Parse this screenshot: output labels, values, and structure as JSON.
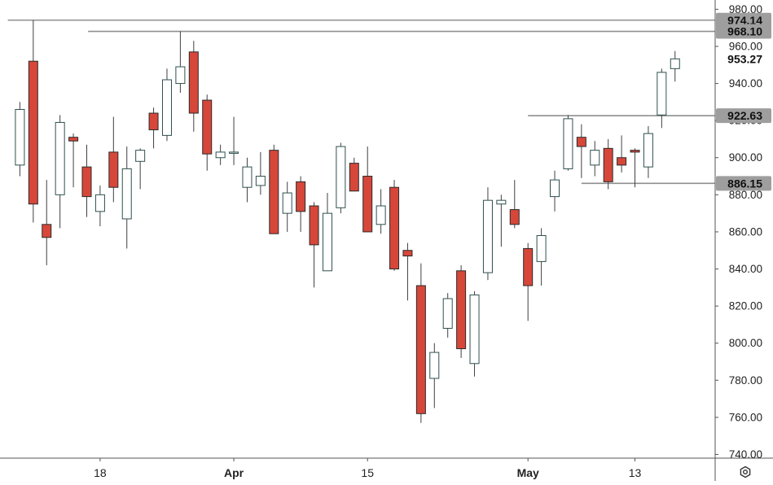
{
  "chart_data": {
    "type": "candlestick",
    "y_axis_ticks": [
      "740.00",
      "760.00",
      "780.00",
      "800.00",
      "820.00",
      "840.00",
      "860.00",
      "880.00",
      "900.00",
      "920.00",
      "940.00",
      "960.00",
      "980.00"
    ],
    "ylim": [
      738,
      985
    ],
    "x_axis_labels": [
      {
        "label": "18",
        "index": 6
      },
      {
        "label": "Apr",
        "index": 16
      },
      {
        "label": "15",
        "index": 26
      },
      {
        "label": "May",
        "index": 38
      },
      {
        "label": "13",
        "index": 46
      }
    ],
    "x_range_days": [
      -1,
      52
    ],
    "candles": [
      {
        "x": 0,
        "o": 896,
        "h": 930,
        "l": 890,
        "c": 926
      },
      {
        "x": 1,
        "o": 952,
        "h": 974.14,
        "l": 865,
        "c": 875
      },
      {
        "x": 2,
        "o": 864,
        "h": 888,
        "l": 842,
        "c": 857
      },
      {
        "x": 3,
        "o": 880,
        "h": 923,
        "l": 862,
        "c": 919
      },
      {
        "x": 4,
        "o": 911,
        "h": 913,
        "l": 884,
        "c": 909
      },
      {
        "x": 5,
        "o": 895,
        "h": 907,
        "l": 868,
        "c": 879
      },
      {
        "x": 6,
        "o": 871,
        "h": 885,
        "l": 863,
        "c": 880
      },
      {
        "x": 7,
        "o": 903,
        "h": 922,
        "l": 876,
        "c": 884
      },
      {
        "x": 8,
        "o": 867,
        "h": 906,
        "l": 851,
        "c": 894
      },
      {
        "x": 9,
        "o": 898,
        "h": 905,
        "l": 883,
        "c": 904
      },
      {
        "x": 10,
        "o": 924,
        "h": 927,
        "l": 905,
        "c": 915
      },
      {
        "x": 11,
        "o": 912,
        "h": 948,
        "l": 909,
        "c": 942
      },
      {
        "x": 12,
        "o": 940,
        "h": 968.1,
        "l": 935,
        "c": 949
      },
      {
        "x": 13,
        "o": 957,
        "h": 963,
        "l": 914,
        "c": 924
      },
      {
        "x": 14,
        "o": 931,
        "h": 934,
        "l": 893,
        "c": 902
      },
      {
        "x": 15,
        "o": 900,
        "h": 907,
        "l": 896,
        "c": 903
      },
      {
        "x": 16,
        "o": 903,
        "h": 922,
        "l": 896,
        "c": 903
      },
      {
        "x": 17,
        "o": 884,
        "h": 900,
        "l": 876,
        "c": 895
      },
      {
        "x": 18,
        "o": 885,
        "h": 903,
        "l": 880,
        "c": 890
      },
      {
        "x": 19,
        "o": 904,
        "h": 907,
        "l": 859,
        "c": 859
      },
      {
        "x": 20,
        "o": 870,
        "h": 887,
        "l": 860,
        "c": 881
      },
      {
        "x": 21,
        "o": 887,
        "h": 890,
        "l": 860,
        "c": 871
      },
      {
        "x": 22,
        "o": 874,
        "h": 876,
        "l": 830,
        "c": 853
      },
      {
        "x": 23,
        "o": 839,
        "h": 881,
        "l": 839,
        "c": 870
      },
      {
        "x": 24,
        "o": 873,
        "h": 908,
        "l": 870,
        "c": 906
      },
      {
        "x": 25,
        "o": 897,
        "h": 900,
        "l": 883,
        "c": 882
      },
      {
        "x": 26,
        "o": 890,
        "h": 906,
        "l": 860,
        "c": 860
      },
      {
        "x": 27,
        "o": 864,
        "h": 883,
        "l": 859,
        "c": 874
      },
      {
        "x": 28,
        "o": 884,
        "h": 888,
        "l": 839,
        "c": 840
      },
      {
        "x": 29,
        "o": 850,
        "h": 854,
        "l": 823,
        "c": 847
      },
      {
        "x": 30,
        "o": 831,
        "h": 843,
        "l": 757,
        "c": 762
      },
      {
        "x": 31,
        "o": 781,
        "h": 800,
        "l": 765,
        "c": 795
      },
      {
        "x": 32,
        "o": 808,
        "h": 827,
        "l": 803,
        "c": 824
      },
      {
        "x": 33,
        "o": 839,
        "h": 842,
        "l": 792,
        "c": 797
      },
      {
        "x": 34,
        "o": 789,
        "h": 828,
        "l": 782,
        "c": 826
      },
      {
        "x": 35,
        "o": 838,
        "h": 884,
        "l": 834,
        "c": 877
      },
      {
        "x": 36,
        "o": 875,
        "h": 880,
        "l": 852,
        "c": 877
      },
      {
        "x": 37,
        "o": 872,
        "h": 888,
        "l": 862,
        "c": 864
      },
      {
        "x": 38,
        "o": 851,
        "h": 854,
        "l": 812,
        "c": 831
      },
      {
        "x": 39,
        "o": 844,
        "h": 862,
        "l": 831,
        "c": 858
      },
      {
        "x": 40,
        "o": 879,
        "h": 893,
        "l": 871,
        "c": 888
      },
      {
        "x": 41,
        "o": 894,
        "h": 923,
        "l": 893,
        "c": 921
      },
      {
        "x": 42,
        "o": 911,
        "h": 918,
        "l": 889,
        "c": 906
      },
      {
        "x": 43,
        "o": 896,
        "h": 909,
        "l": 890,
        "c": 904
      },
      {
        "x": 44,
        "o": 905,
        "h": 910,
        "l": 883,
        "c": 887
      },
      {
        "x": 45,
        "o": 900,
        "h": 912,
        "l": 892,
        "c": 896
      },
      {
        "x": 46,
        "o": 904,
        "h": 905,
        "l": 884,
        "c": 903
      },
      {
        "x": 47,
        "o": 895,
        "h": 917,
        "l": 889,
        "c": 913
      },
      {
        "x": 48,
        "o": 923,
        "h": 948,
        "l": 916,
        "c": 946
      },
      {
        "x": 49,
        "o": 948,
        "h": 957.5,
        "l": 941,
        "c": 953.27
      }
    ],
    "levels": [
      {
        "label": "974.14",
        "value": 974.14,
        "x_start": -0.9
      },
      {
        "label": "968.10",
        "value": 968.1,
        "x_start": 5.1
      },
      {
        "label": "922.63",
        "value": 922.63,
        "x_start": 38.0
      },
      {
        "label": "886.15",
        "value": 886.15,
        "x_start": 42.0
      }
    ],
    "last_price": {
      "label": "953.27",
      "value": 953.27
    },
    "colors": {
      "up_body": "#ffffff",
      "up_border": "#2f4f4f",
      "down_body": "#d6473a",
      "down_border": "#2b2b2b",
      "wick": "#404040",
      "level_line": "#8f8f8f",
      "level_tag_bg": "#9e9e9e",
      "level_tag_text": "#111111",
      "axis_text": "#222222",
      "axis_line": "#555555"
    }
  },
  "ui": {
    "settings_icon": "gear-icon"
  }
}
